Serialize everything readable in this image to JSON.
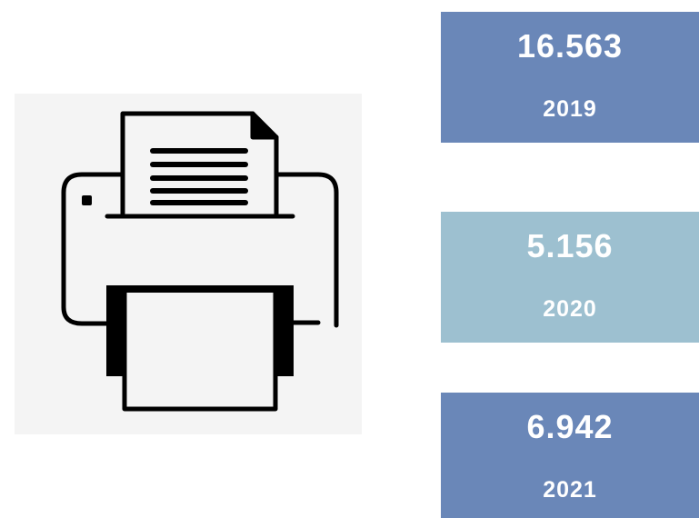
{
  "stats": [
    {
      "value": "16.563",
      "year": "2019",
      "color": "#6a87b8"
    },
    {
      "value": "5.156",
      "year": "2020",
      "color": "#9dc0d0"
    },
    {
      "value": "6.942",
      "year": "2021",
      "color": "#6a87b8"
    }
  ]
}
